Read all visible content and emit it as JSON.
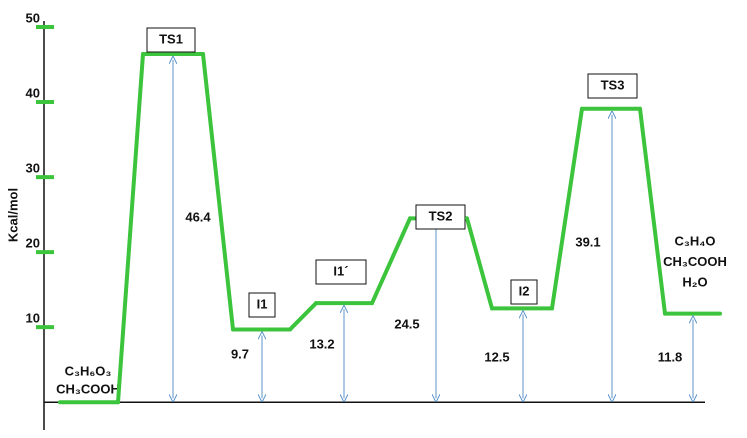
{
  "chart_data": {
    "type": "energy_profile",
    "ylabel": "Kcal/mol",
    "categories": [
      [
        "C₃H₆O₃",
        "CH₃COOH"
      ],
      "TS1",
      "I1",
      "I1´",
      "TS2",
      "I2",
      "TS3",
      [
        "C₃H₄O",
        "CH₃COOH",
        "H₂O"
      ]
    ],
    "values": [
      0,
      46.4,
      9.7,
      13.2,
      24.5,
      12.5,
      39.1,
      11.8
    ],
    "ylim": [
      -3.7,
      50.8
    ],
    "yticks": [
      10,
      20,
      30,
      40,
      50
    ],
    "color": "#3cc43c",
    "arrow_color": "#5b93c9"
  }
}
